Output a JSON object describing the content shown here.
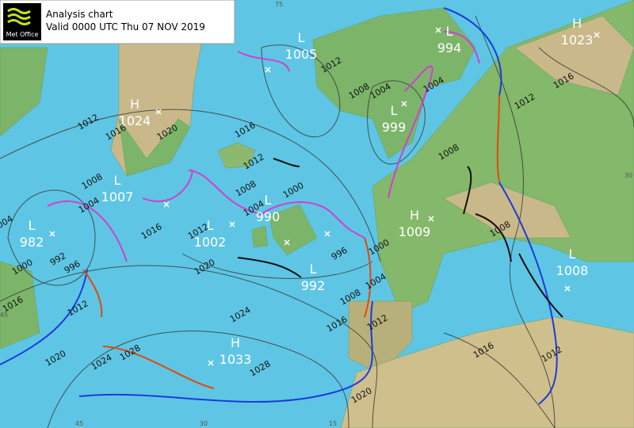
{
  "header": {
    "logo": "Met Office",
    "title": "Analysis chart",
    "subtitle": "Valid 0000 UTC Thu 07 NOV 2019"
  },
  "centers": [
    {
      "kind": "L",
      "pressure": 1005
    },
    {
      "kind": "L",
      "pressure": 994
    },
    {
      "kind": "H",
      "pressure": 1023
    },
    {
      "kind": "H",
      "pressure": 1024
    },
    {
      "kind": "L",
      "pressure": 999
    },
    {
      "kind": "L",
      "pressure": 1007
    },
    {
      "kind": "L",
      "pressure": 990
    },
    {
      "kind": "H",
      "pressure": 1009
    },
    {
      "kind": "L",
      "pressure": 982
    },
    {
      "kind": "L",
      "pressure": 1002
    },
    {
      "kind": "L",
      "pressure": 992
    },
    {
      "kind": "L",
      "pressure": 1008
    },
    {
      "kind": "H",
      "pressure": 1033
    }
  ],
  "isobar_labels": [
    1012,
    1008,
    1004,
    1004,
    1016,
    1012,
    1008,
    1004,
    1000,
    1012,
    1016,
    1020,
    1008,
    1004,
    1016,
    1012,
    1020,
    1024,
    1028,
    1028,
    1024,
    1020,
    1012,
    1016,
    1000,
    992,
    996,
    1004,
    996,
    1000,
    1004,
    1008,
    1012,
    1016,
    1020,
    1008,
    1012,
    1016,
    1008,
    1016,
    1012
  ],
  "grid_labels": [
    75,
    30,
    45,
    30,
    15,
    45
  ]
}
